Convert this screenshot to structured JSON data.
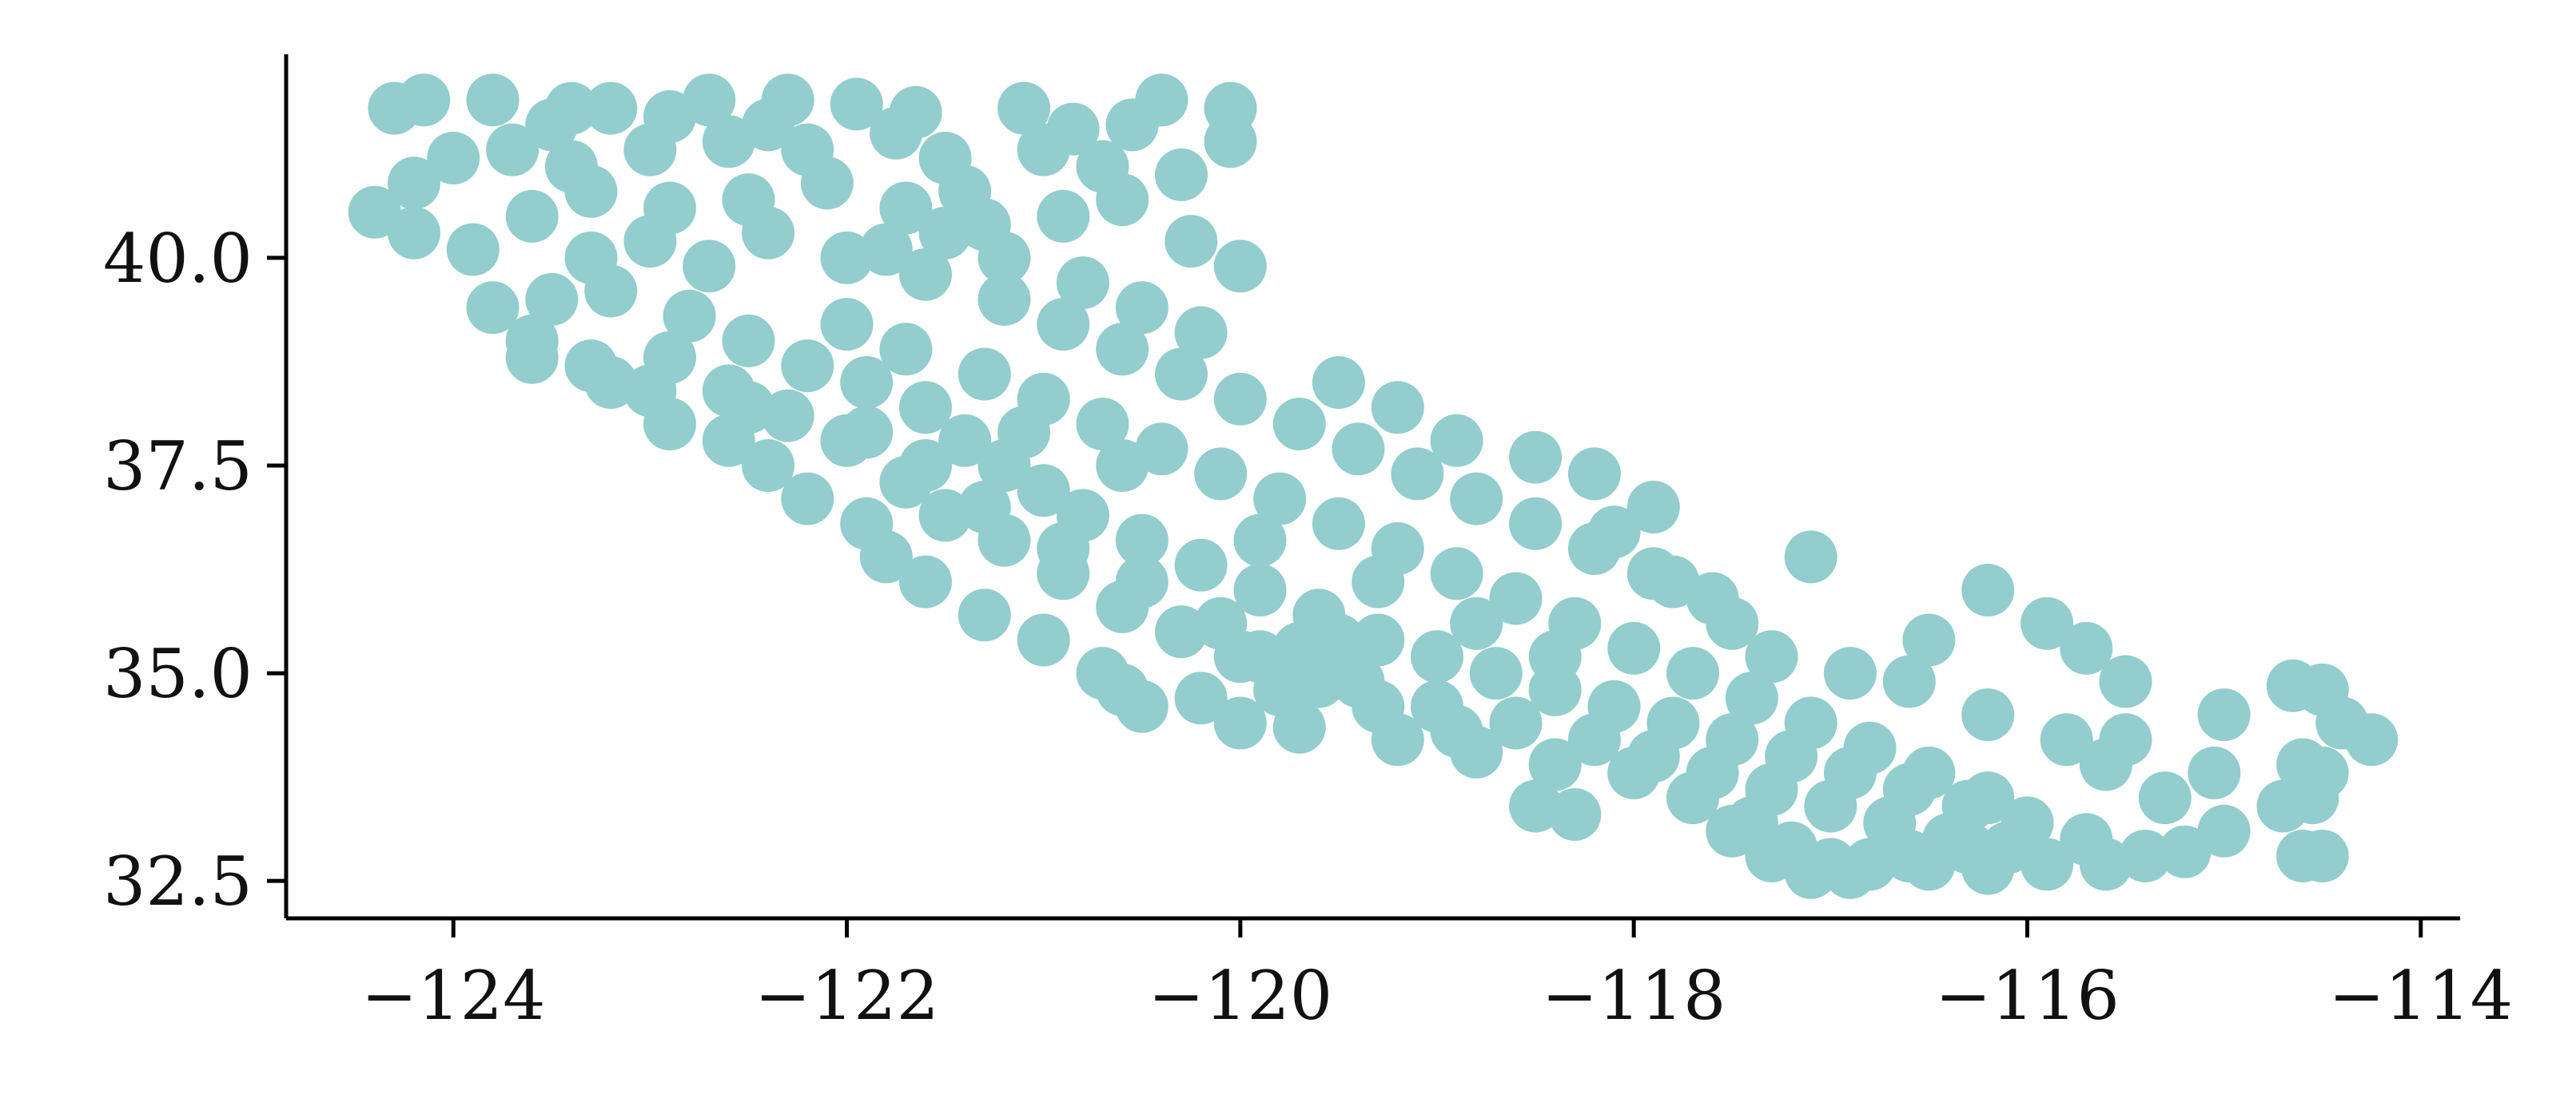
{
  "chart_data": {
    "type": "scatter",
    "title": "",
    "xlabel": "",
    "ylabel": "",
    "xlim": [
      -124.85,
      -113.8
    ],
    "ylim": [
      32.05,
      42.45
    ],
    "xticks": [
      -124,
      -122,
      -120,
      -118,
      -116,
      -114
    ],
    "xtick_labels": [
      "−124",
      "−122",
      "−120",
      "−118",
      "−116",
      "−114"
    ],
    "yticks": [
      32.5,
      35.0,
      37.5,
      40.0
    ],
    "ytick_labels": [
      "32.5",
      "35.0",
      "37.5",
      "40.0"
    ],
    "grid": false,
    "legend": "none",
    "point_color": "#93cdcd",
    "spines": [
      "left",
      "bottom"
    ],
    "series": [
      {
        "points": [
          [
            -124.3,
            41.8
          ],
          [
            -124.15,
            41.9
          ],
          [
            -123.8,
            41.9
          ],
          [
            -123.4,
            41.8
          ],
          [
            -123.2,
            41.8
          ],
          [
            -122.9,
            41.7
          ],
          [
            -122.7,
            41.9
          ],
          [
            -122.3,
            41.9
          ],
          [
            -121.95,
            41.85
          ],
          [
            -121.65,
            41.75
          ],
          [
            -121.1,
            41.8
          ],
          [
            -120.85,
            41.55
          ],
          [
            -120.4,
            41.9
          ],
          [
            -120.55,
            41.6
          ],
          [
            -120.05,
            41.8
          ],
          [
            -120.05,
            41.4
          ],
          [
            -121.75,
            41.5
          ],
          [
            -122.4,
            41.6
          ],
          [
            -123.5,
            41.6
          ],
          [
            -124.4,
            40.55
          ],
          [
            -124.2,
            40.9
          ],
          [
            -124.0,
            41.2
          ],
          [
            -123.7,
            41.3
          ],
          [
            -123.4,
            41.1
          ],
          [
            -123.0,
            41.3
          ],
          [
            -122.6,
            41.4
          ],
          [
            -122.2,
            41.3
          ],
          [
            -121.5,
            41.2
          ],
          [
            -121.0,
            41.3
          ],
          [
            -120.7,
            41.1
          ],
          [
            -120.3,
            41.0
          ],
          [
            -124.2,
            40.3
          ],
          [
            -123.9,
            40.1
          ],
          [
            -123.6,
            40.5
          ],
          [
            -123.3,
            40.8
          ],
          [
            -122.9,
            40.6
          ],
          [
            -122.5,
            40.7
          ],
          [
            -122.1,
            40.9
          ],
          [
            -121.7,
            40.6
          ],
          [
            -121.3,
            40.4
          ],
          [
            -120.9,
            40.5
          ],
          [
            -120.6,
            40.7
          ],
          [
            -120.25,
            40.2
          ],
          [
            -120.0,
            39.9
          ],
          [
            -123.8,
            39.4
          ],
          [
            -123.6,
            39.0
          ],
          [
            -123.3,
            38.7
          ],
          [
            -123.0,
            38.4
          ],
          [
            -122.9,
            38.0
          ],
          [
            -122.6,
            37.8
          ],
          [
            -122.4,
            37.5
          ],
          [
            -122.2,
            37.1
          ],
          [
            -121.9,
            36.8
          ],
          [
            -121.8,
            36.4
          ],
          [
            -121.6,
            36.1
          ],
          [
            -121.3,
            35.7
          ],
          [
            -121.0,
            35.4
          ],
          [
            -120.7,
            35.0
          ],
          [
            -120.5,
            34.6
          ],
          [
            -120.0,
            34.4
          ],
          [
            -119.7,
            34.35
          ],
          [
            -119.2,
            34.2
          ],
          [
            -118.8,
            34.05
          ],
          [
            -118.4,
            33.9
          ],
          [
            -118.0,
            33.8
          ],
          [
            -117.7,
            33.5
          ],
          [
            -117.4,
            33.2
          ],
          [
            -117.2,
            32.9
          ],
          [
            -117.1,
            32.6
          ],
          [
            -116.9,
            32.6
          ],
          [
            -116.5,
            32.7
          ],
          [
            -116.2,
            32.65
          ],
          [
            -115.9,
            32.7
          ],
          [
            -115.6,
            32.7
          ],
          [
            -115.4,
            32.8
          ],
          [
            -115.2,
            32.85
          ],
          [
            -123.2,
            39.6
          ],
          [
            -122.8,
            39.3
          ],
          [
            -122.5,
            39.0
          ],
          [
            -122.2,
            38.7
          ],
          [
            -121.9,
            38.5
          ],
          [
            -121.6,
            38.2
          ],
          [
            -121.4,
            37.8
          ],
          [
            -121.2,
            37.5
          ],
          [
            -121.0,
            37.2
          ],
          [
            -120.8,
            36.9
          ],
          [
            -120.5,
            36.6
          ],
          [
            -120.2,
            36.3
          ],
          [
            -119.9,
            36.0
          ],
          [
            -119.6,
            35.7
          ],
          [
            -119.3,
            35.4
          ],
          [
            -119.0,
            35.2
          ],
          [
            -118.7,
            35.0
          ],
          [
            -118.4,
            34.8
          ],
          [
            -118.1,
            34.6
          ],
          [
            -117.8,
            34.4
          ],
          [
            -117.5,
            34.2
          ],
          [
            -117.2,
            34.0
          ],
          [
            -116.9,
            33.8
          ],
          [
            -116.6,
            33.6
          ],
          [
            -116.3,
            33.4
          ],
          [
            -116.0,
            33.2
          ],
          [
            -115.7,
            33.0
          ],
          [
            -122.0,
            40.0
          ],
          [
            -121.6,
            39.8
          ],
          [
            -121.2,
            39.5
          ],
          [
            -120.9,
            39.2
          ],
          [
            -120.6,
            38.9
          ],
          [
            -120.3,
            38.6
          ],
          [
            -120.0,
            38.3
          ],
          [
            -119.7,
            38.0
          ],
          [
            -119.4,
            37.7
          ],
          [
            -119.1,
            37.4
          ],
          [
            -118.8,
            37.1
          ],
          [
            -118.5,
            36.8
          ],
          [
            -118.2,
            36.5
          ],
          [
            -117.9,
            36.2
          ],
          [
            -117.6,
            35.9
          ],
          [
            -122.0,
            39.2
          ],
          [
            -121.7,
            38.9
          ],
          [
            -121.3,
            38.6
          ],
          [
            -121.0,
            38.3
          ],
          [
            -120.7,
            38.0
          ],
          [
            -120.4,
            37.7
          ],
          [
            -120.1,
            37.4
          ],
          [
            -119.8,
            37.1
          ],
          [
            -119.5,
            36.8
          ],
          [
            -119.2,
            36.5
          ],
          [
            -118.9,
            36.2
          ],
          [
            -118.6,
            35.9
          ],
          [
            -118.3,
            35.6
          ],
          [
            -118.0,
            35.3
          ],
          [
            -117.7,
            35.0
          ],
          [
            -117.4,
            34.7
          ],
          [
            -117.1,
            34.4
          ],
          [
            -116.8,
            34.1
          ],
          [
            -116.5,
            33.8
          ],
          [
            -116.2,
            33.5
          ],
          [
            -121.5,
            40.3
          ],
          [
            -121.2,
            40.0
          ],
          [
            -120.8,
            39.7
          ],
          [
            -120.5,
            39.4
          ],
          [
            -120.2,
            39.1
          ],
          [
            -121.9,
            37.9
          ],
          [
            -121.6,
            37.5
          ],
          [
            -121.3,
            37.0
          ],
          [
            -120.9,
            36.5
          ],
          [
            -120.5,
            36.1
          ],
          [
            -120.1,
            35.6
          ],
          [
            -119.7,
            35.3
          ],
          [
            -119.4,
            34.9
          ],
          [
            -119.0,
            34.6
          ],
          [
            -118.6,
            34.4
          ],
          [
            -118.2,
            34.2
          ],
          [
            -117.9,
            34.0
          ],
          [
            -117.6,
            33.8
          ],
          [
            -117.3,
            33.6
          ],
          [
            -117.0,
            33.4
          ],
          [
            -116.7,
            33.2
          ],
          [
            -116.4,
            33.0
          ],
          [
            -116.1,
            32.9
          ],
          [
            -122.6,
            38.4
          ],
          [
            -122.3,
            38.1
          ],
          [
            -122.0,
            37.8
          ],
          [
            -121.7,
            37.3
          ],
          [
            -121.5,
            36.9
          ],
          [
            -121.2,
            36.6
          ],
          [
            -120.9,
            36.2
          ],
          [
            -120.6,
            35.8
          ],
          [
            -120.3,
            35.5
          ],
          [
            -120.0,
            35.2
          ],
          [
            -119.6,
            34.9
          ],
          [
            -119.3,
            34.6
          ],
          [
            -118.9,
            34.3
          ],
          [
            -119.5,
            38.5
          ],
          [
            -119.2,
            38.2
          ],
          [
            -118.9,
            37.8
          ],
          [
            -118.5,
            37.6
          ],
          [
            -118.2,
            37.4
          ],
          [
            -117.9,
            37.0
          ],
          [
            -118.1,
            36.7
          ],
          [
            -117.8,
            36.1
          ],
          [
            -117.5,
            35.6
          ],
          [
            -117.3,
            35.2
          ],
          [
            -116.9,
            35.0
          ],
          [
            -116.6,
            34.9
          ],
          [
            -116.2,
            34.5
          ],
          [
            -115.8,
            34.2
          ],
          [
            -115.5,
            34.2
          ],
          [
            -115.6,
            33.9
          ],
          [
            -115.9,
            35.6
          ],
          [
            -115.7,
            35.3
          ],
          [
            -115.5,
            34.9
          ],
          [
            -116.5,
            35.4
          ],
          [
            -116.2,
            36.0
          ],
          [
            -117.1,
            36.4
          ],
          [
            -115.0,
            34.5
          ],
          [
            -115.05,
            33.8
          ],
          [
            -115.0,
            33.1
          ],
          [
            -114.65,
            34.85
          ],
          [
            -114.5,
            34.8
          ],
          [
            -114.4,
            34.4
          ],
          [
            -114.5,
            33.8
          ],
          [
            -114.55,
            33.5
          ],
          [
            -114.25,
            34.2
          ],
          [
            -114.6,
            33.9
          ],
          [
            -114.7,
            33.4
          ],
          [
            -114.6,
            32.8
          ],
          [
            -114.5,
            32.8
          ],
          [
            -115.3,
            33.5
          ],
          [
            -120.6,
            34.8
          ],
          [
            -120.2,
            34.7
          ],
          [
            -119.8,
            34.8
          ],
          [
            -119.9,
            35.2
          ],
          [
            -119.5,
            35.4
          ],
          [
            -118.5,
            33.4
          ],
          [
            -118.3,
            33.3
          ],
          [
            -117.5,
            33.1
          ],
          [
            -117.3,
            32.8
          ],
          [
            -117.0,
            32.7
          ],
          [
            -116.8,
            32.7
          ],
          [
            -116.6,
            32.8
          ],
          [
            -116.3,
            32.9
          ],
          [
            -121.4,
            40.8
          ],
          [
            -121.8,
            40.1
          ],
          [
            -122.4,
            40.3
          ],
          [
            -122.7,
            39.9
          ],
          [
            -123.0,
            40.2
          ],
          [
            -123.3,
            40.0
          ],
          [
            -123.5,
            39.5
          ],
          [
            -122.9,
            38.8
          ],
          [
            -122.5,
            38.2
          ],
          [
            -123.6,
            38.8
          ],
          [
            -123.2,
            38.5
          ],
          [
            -121.1,
            37.9
          ],
          [
            -120.6,
            37.5
          ],
          [
            -119.9,
            36.6
          ],
          [
            -119.3,
            36.1
          ],
          [
            -118.8,
            35.6
          ],
          [
            -118.4,
            35.2
          ]
        ]
      }
    ]
  }
}
